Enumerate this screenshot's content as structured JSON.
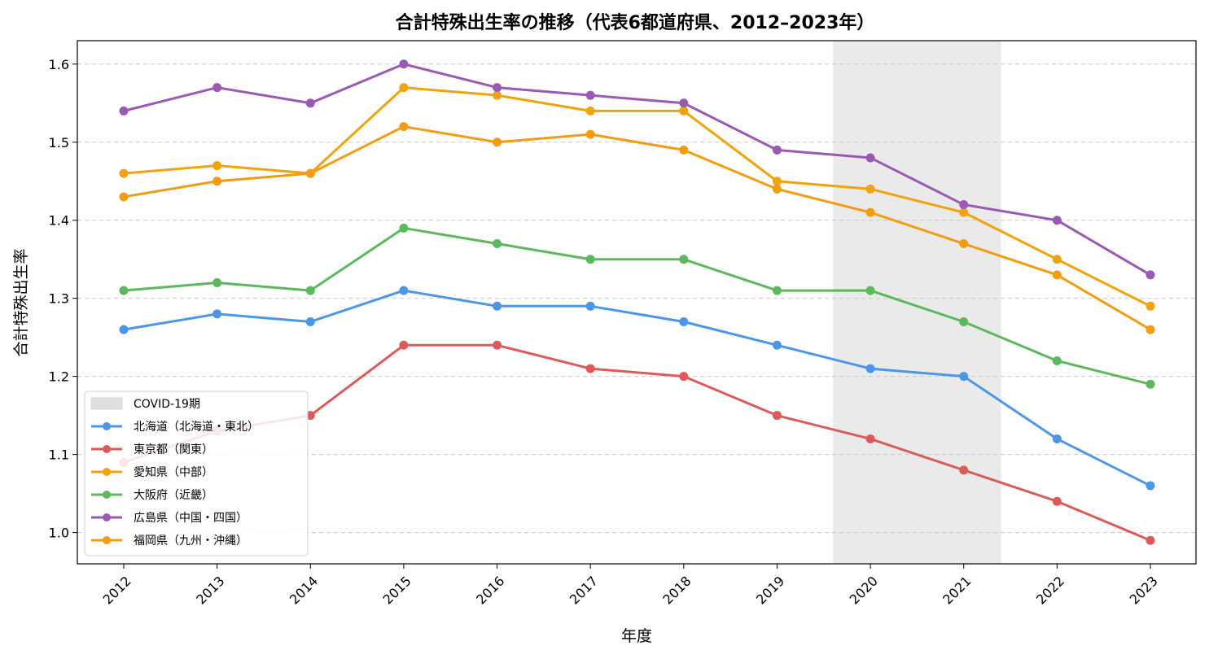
{
  "chart_data": {
    "type": "line",
    "title": "合計特殊出生率の推移（代表6都道府県、2012–2023年）",
    "xlabel": "年度",
    "ylabel": "合計特殊出生率",
    "categories": [
      "2012",
      "2013",
      "2014",
      "2015",
      "2016",
      "2017",
      "2018",
      "2019",
      "2020",
      "2021",
      "2022",
      "2023"
    ],
    "ylim": [
      0.96,
      1.63
    ],
    "yticks": [
      "1.0",
      "1.1",
      "1.2",
      "1.3",
      "1.4",
      "1.5",
      "1.6"
    ],
    "grid": "horizontal dashed",
    "legend_position": "lower-left",
    "shaded_region": {
      "label": "COVID-19期",
      "x_start": "2019.6",
      "x_end": "2021.4",
      "color": "#d9d9d9"
    },
    "series": [
      {
        "name": "北海道（北海道・東北）",
        "color": "#4c96e8",
        "values": [
          1.26,
          1.28,
          1.27,
          1.31,
          1.29,
          1.29,
          1.27,
          1.24,
          1.21,
          1.2,
          1.12,
          1.06
        ]
      },
      {
        "name": "東京都（関東）",
        "color": "#dc5a5a",
        "values": [
          1.09,
          1.13,
          1.15,
          1.24,
          1.24,
          1.21,
          1.2,
          1.15,
          1.12,
          1.08,
          1.04,
          0.99
        ]
      },
      {
        "name": "愛知県（中部）",
        "color": "#f0a30a",
        "values": [
          1.46,
          1.47,
          1.46,
          1.57,
          1.56,
          1.54,
          1.54,
          1.45,
          1.44,
          1.41,
          1.35,
          1.29
        ]
      },
      {
        "name": "大阪府（近畿）",
        "color": "#5cb85c",
        "values": [
          1.31,
          1.32,
          1.31,
          1.39,
          1.37,
          1.35,
          1.35,
          1.31,
          1.31,
          1.27,
          1.22,
          1.19
        ]
      },
      {
        "name": "広島県（中国・四国）",
        "color": "#9b59b6",
        "values": [
          1.54,
          1.57,
          1.55,
          1.6,
          1.57,
          1.56,
          1.55,
          1.49,
          1.48,
          1.42,
          1.4,
          1.33
        ]
      },
      {
        "name": "福岡県（九州・沖縄）",
        "color": "#f39c12",
        "values": [
          1.43,
          1.45,
          1.46,
          1.52,
          1.5,
          1.51,
          1.49,
          1.44,
          1.41,
          1.37,
          1.33,
          1.26
        ]
      }
    ]
  }
}
